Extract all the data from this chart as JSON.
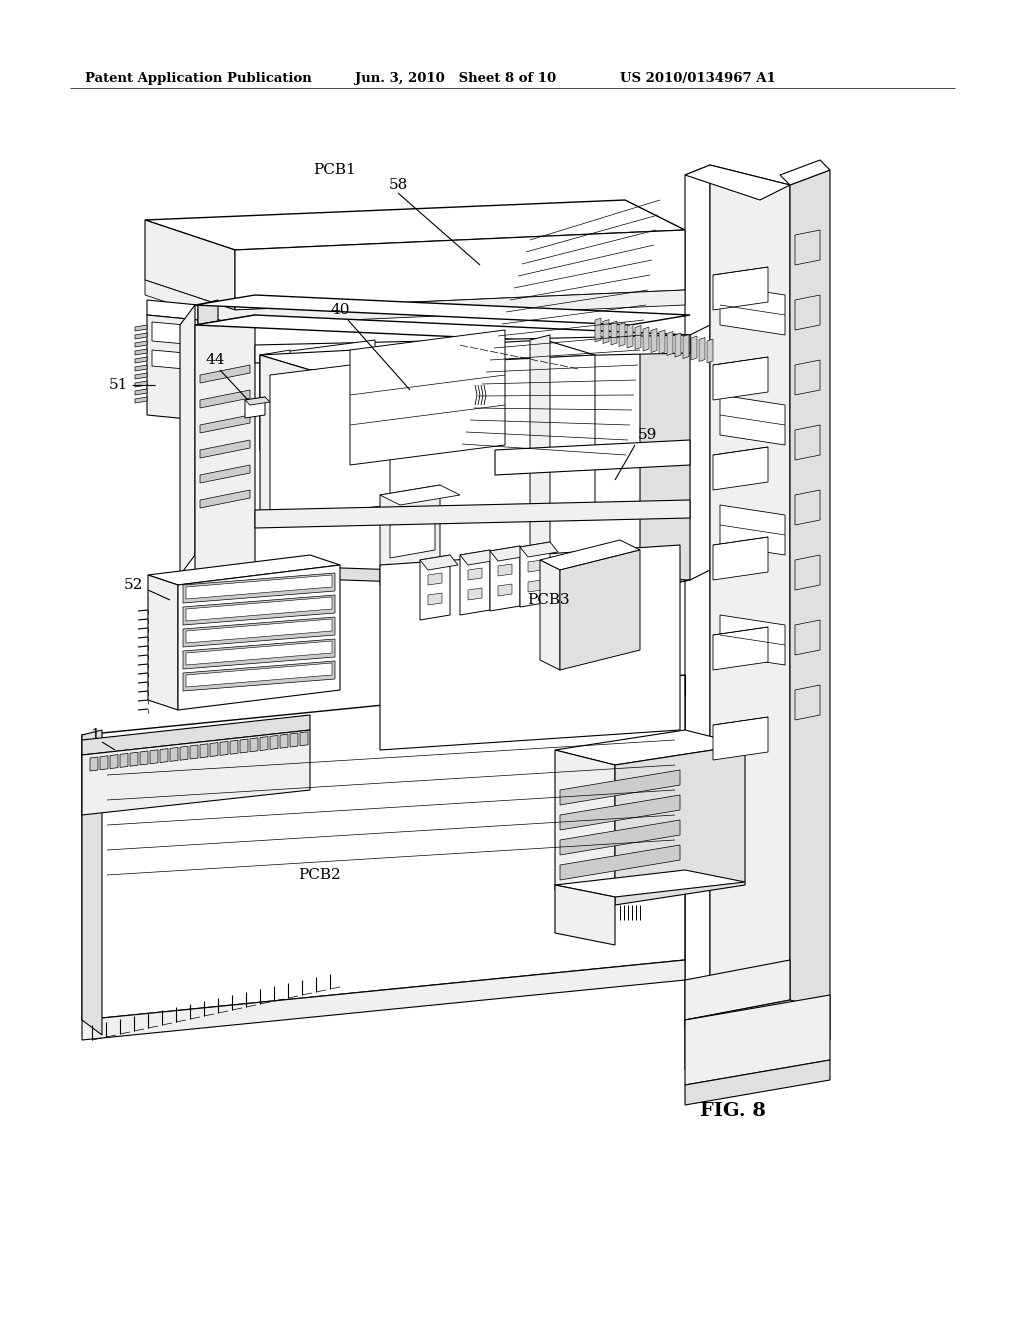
{
  "bg_color": "#ffffff",
  "header_left": "Patent Application Publication",
  "header_mid": "Jun. 3, 2010   Sheet 8 of 10",
  "header_right": "US 2010/0134967 A1",
  "fig_label": "FIG. 8",
  "line_color": "#000000",
  "fill_white": "#ffffff",
  "fill_light": "#f0f0f0",
  "fill_mid": "#e0e0e0",
  "fill_dark": "#cccccc"
}
